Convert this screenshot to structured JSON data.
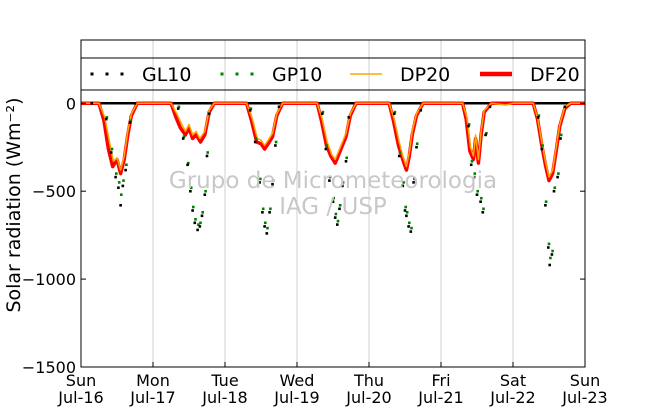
{
  "chart_data": {
    "type": "scatter",
    "ylabel": "Solar radiation (Wm⁻²)",
    "ylim": [
      -1500,
      360
    ],
    "xlim": [
      0,
      7
    ],
    "yticks": [
      0,
      -500,
      -1000,
      -1500
    ],
    "ytick_labels": [
      "0",
      "−500",
      "−1000",
      "−1500"
    ],
    "xticks": [
      0,
      1,
      2,
      3,
      4,
      5,
      6,
      7
    ],
    "xtick_labels": [
      [
        "Sun",
        "Jul-16"
      ],
      [
        "Mon",
        "Jul-17"
      ],
      [
        "Tue",
        "Jul-18"
      ],
      [
        "Wed",
        "Jul-19"
      ],
      [
        "Thu",
        "Jul-20"
      ],
      [
        "Fri",
        "Jul-21"
      ],
      [
        "Sat",
        "Jul-22"
      ],
      [
        "Sun",
        "Jul-23"
      ]
    ],
    "grid": "vertical",
    "legend_position": "top",
    "watermark": [
      "Grupo de Micrometeorologia",
      "IAG / USP"
    ],
    "x_unit": "days since Sun Jul-16",
    "series": [
      {
        "name": "GL10",
        "style": "dots",
        "color": "#000000",
        "points": [
          [
            0.15,
            0
          ],
          [
            0.35,
            -90
          ],
          [
            0.42,
            -280
          ],
          [
            0.48,
            -420
          ],
          [
            0.52,
            -480
          ],
          [
            0.55,
            -580
          ],
          [
            0.58,
            -470
          ],
          [
            0.62,
            -380
          ],
          [
            0.68,
            -110
          ],
          [
            0.75,
            0
          ],
          [
            1.35,
            -30
          ],
          [
            1.42,
            -200
          ],
          [
            1.48,
            -350
          ],
          [
            1.52,
            -500
          ],
          [
            1.55,
            -610
          ],
          [
            1.58,
            -680
          ],
          [
            1.62,
            -720
          ],
          [
            1.65,
            -700
          ],
          [
            1.68,
            -640
          ],
          [
            1.72,
            -520
          ],
          [
            1.75,
            -300
          ],
          [
            1.78,
            -60
          ],
          [
            2.35,
            -40
          ],
          [
            2.42,
            -220
          ],
          [
            2.48,
            -450
          ],
          [
            2.52,
            -620
          ],
          [
            2.55,
            -700
          ],
          [
            2.58,
            -740
          ],
          [
            2.62,
            -620
          ],
          [
            2.66,
            -460
          ],
          [
            2.7,
            -240
          ],
          [
            2.75,
            -20
          ],
          [
            3.35,
            -60
          ],
          [
            3.4,
            -260
          ],
          [
            3.45,
            -440
          ],
          [
            3.5,
            -560
          ],
          [
            3.53,
            -650
          ],
          [
            3.56,
            -690
          ],
          [
            3.59,
            -600
          ],
          [
            3.63,
            -470
          ],
          [
            3.68,
            -330
          ],
          [
            3.72,
            -80
          ],
          [
            4.35,
            -60
          ],
          [
            4.42,
            -300
          ],
          [
            4.47,
            -470
          ],
          [
            4.5,
            -610
          ],
          [
            4.52,
            -640
          ],
          [
            4.55,
            -700
          ],
          [
            4.58,
            -730
          ],
          [
            4.62,
            -450
          ],
          [
            4.66,
            -250
          ],
          [
            4.72,
            -40
          ],
          [
            5.38,
            -130
          ],
          [
            5.42,
            -350
          ],
          [
            5.46,
            -420
          ],
          [
            5.5,
            -520
          ],
          [
            5.55,
            -560
          ],
          [
            5.58,
            -620
          ],
          [
            5.62,
            -180
          ],
          [
            5.68,
            -20
          ],
          [
            6.35,
            -80
          ],
          [
            6.4,
            -260
          ],
          [
            6.45,
            -580
          ],
          [
            6.49,
            -820
          ],
          [
            6.51,
            -920
          ],
          [
            6.54,
            -860
          ],
          [
            6.57,
            -500
          ],
          [
            6.62,
            -420
          ],
          [
            6.66,
            -200
          ],
          [
            6.72,
            -20
          ]
        ]
      },
      {
        "name": "GP10",
        "style": "dots",
        "color": "#008000",
        "points": [
          [
            0.36,
            -80
          ],
          [
            0.43,
            -260
          ],
          [
            0.49,
            -400
          ],
          [
            0.53,
            -450
          ],
          [
            0.56,
            -520
          ],
          [
            0.59,
            -440
          ],
          [
            0.63,
            -350
          ],
          [
            0.69,
            -100
          ],
          [
            1.36,
            -20
          ],
          [
            1.43,
            -190
          ],
          [
            1.49,
            -340
          ],
          [
            1.53,
            -480
          ],
          [
            1.56,
            -590
          ],
          [
            1.59,
            -660
          ],
          [
            1.63,
            -690
          ],
          [
            1.66,
            -680
          ],
          [
            1.69,
            -620
          ],
          [
            1.73,
            -500
          ],
          [
            1.76,
            -280
          ],
          [
            2.36,
            -30
          ],
          [
            2.43,
            -200
          ],
          [
            2.49,
            -430
          ],
          [
            2.53,
            -600
          ],
          [
            2.56,
            -680
          ],
          [
            2.59,
            -710
          ],
          [
            2.63,
            -600
          ],
          [
            2.67,
            -440
          ],
          [
            2.71,
            -220
          ],
          [
            3.36,
            -50
          ],
          [
            3.41,
            -240
          ],
          [
            3.46,
            -420
          ],
          [
            3.51,
            -540
          ],
          [
            3.54,
            -630
          ],
          [
            3.57,
            -670
          ],
          [
            3.6,
            -580
          ],
          [
            3.64,
            -450
          ],
          [
            3.69,
            -310
          ],
          [
            4.36,
            -50
          ],
          [
            4.43,
            -280
          ],
          [
            4.48,
            -450
          ],
          [
            4.51,
            -590
          ],
          [
            4.53,
            -620
          ],
          [
            4.56,
            -680
          ],
          [
            4.59,
            -710
          ],
          [
            4.63,
            -430
          ],
          [
            4.67,
            -230
          ],
          [
            5.39,
            -120
          ],
          [
            5.43,
            -330
          ],
          [
            5.47,
            -400
          ],
          [
            5.51,
            -500
          ],
          [
            5.56,
            -540
          ],
          [
            5.59,
            -600
          ],
          [
            5.63,
            -170
          ],
          [
            6.36,
            -70
          ],
          [
            6.41,
            -240
          ],
          [
            6.46,
            -560
          ],
          [
            6.5,
            -800
          ],
          [
            6.52,
            -880
          ],
          [
            6.55,
            -840
          ],
          [
            6.58,
            -480
          ],
          [
            6.63,
            -400
          ],
          [
            6.67,
            -180
          ]
        ]
      },
      {
        "name": "DP20",
        "style": "line",
        "color": "#ffa500",
        "points": [
          [
            0.0,
            0
          ],
          [
            0.25,
            0
          ],
          [
            0.33,
            -80
          ],
          [
            0.4,
            -230
          ],
          [
            0.45,
            -330
          ],
          [
            0.5,
            -310
          ],
          [
            0.55,
            -380
          ],
          [
            0.6,
            -300
          ],
          [
            0.65,
            -160
          ],
          [
            0.7,
            -60
          ],
          [
            0.78,
            0
          ],
          [
            1.25,
            0
          ],
          [
            1.33,
            -60
          ],
          [
            1.4,
            -120
          ],
          [
            1.45,
            -160
          ],
          [
            1.5,
            -120
          ],
          [
            1.55,
            -180
          ],
          [
            1.6,
            -160
          ],
          [
            1.65,
            -200
          ],
          [
            1.72,
            -160
          ],
          [
            1.78,
            -40
          ],
          [
            1.85,
            0
          ],
          [
            2.3,
            0
          ],
          [
            2.38,
            -90
          ],
          [
            2.45,
            -200
          ],
          [
            2.5,
            -210
          ],
          [
            2.55,
            -240
          ],
          [
            2.6,
            -210
          ],
          [
            2.66,
            -170
          ],
          [
            2.72,
            -60
          ],
          [
            2.8,
            0
          ],
          [
            3.28,
            0
          ],
          [
            3.35,
            -90
          ],
          [
            3.42,
            -220
          ],
          [
            3.48,
            -290
          ],
          [
            3.53,
            -320
          ],
          [
            3.58,
            -270
          ],
          [
            3.63,
            -220
          ],
          [
            3.68,
            -170
          ],
          [
            3.74,
            -60
          ],
          [
            3.82,
            0
          ],
          [
            4.28,
            0
          ],
          [
            4.35,
            -90
          ],
          [
            4.42,
            -220
          ],
          [
            4.47,
            -300
          ],
          [
            4.52,
            -360
          ],
          [
            4.56,
            -280
          ],
          [
            4.6,
            -160
          ],
          [
            4.66,
            -60
          ],
          [
            4.75,
            0
          ],
          [
            5.3,
            0
          ],
          [
            5.36,
            -80
          ],
          [
            5.41,
            -250
          ],
          [
            5.45,
            -300
          ],
          [
            5.48,
            -180
          ],
          [
            5.52,
            -320
          ],
          [
            5.56,
            -150
          ],
          [
            5.6,
            -40
          ],
          [
            5.7,
            0
          ],
          [
            5.9,
            -10
          ],
          [
            6.0,
            0
          ],
          [
            6.28,
            0
          ],
          [
            6.34,
            -80
          ],
          [
            6.4,
            -220
          ],
          [
            6.45,
            -330
          ],
          [
            6.5,
            -420
          ],
          [
            6.55,
            -380
          ],
          [
            6.6,
            -250
          ],
          [
            6.65,
            -120
          ],
          [
            6.72,
            -20
          ],
          [
            6.8,
            0
          ],
          [
            7.0,
            0
          ]
        ]
      },
      {
        "name": "DF20",
        "style": "line",
        "color": "#ff0000",
        "points": [
          [
            0.0,
            0
          ],
          [
            0.25,
            0
          ],
          [
            0.32,
            -100
          ],
          [
            0.38,
            -260
          ],
          [
            0.44,
            -360
          ],
          [
            0.5,
            -320
          ],
          [
            0.55,
            -400
          ],
          [
            0.6,
            -320
          ],
          [
            0.65,
            -180
          ],
          [
            0.7,
            -70
          ],
          [
            0.78,
            0
          ],
          [
            1.25,
            0
          ],
          [
            1.32,
            -80
          ],
          [
            1.38,
            -140
          ],
          [
            1.45,
            -180
          ],
          [
            1.5,
            -140
          ],
          [
            1.55,
            -200
          ],
          [
            1.6,
            -180
          ],
          [
            1.66,
            -220
          ],
          [
            1.72,
            -180
          ],
          [
            1.78,
            -50
          ],
          [
            1.85,
            0
          ],
          [
            2.3,
            0
          ],
          [
            2.37,
            -100
          ],
          [
            2.44,
            -220
          ],
          [
            2.5,
            -230
          ],
          [
            2.55,
            -260
          ],
          [
            2.6,
            -230
          ],
          [
            2.66,
            -190
          ],
          [
            2.72,
            -70
          ],
          [
            2.8,
            0
          ],
          [
            3.28,
            0
          ],
          [
            3.34,
            -100
          ],
          [
            3.41,
            -240
          ],
          [
            3.47,
            -300
          ],
          [
            3.53,
            -340
          ],
          [
            3.58,
            -290
          ],
          [
            3.63,
            -240
          ],
          [
            3.68,
            -190
          ],
          [
            3.74,
            -70
          ],
          [
            3.82,
            0
          ],
          [
            4.28,
            0
          ],
          [
            4.34,
            -100
          ],
          [
            4.41,
            -240
          ],
          [
            4.47,
            -320
          ],
          [
            4.52,
            -380
          ],
          [
            4.56,
            -300
          ],
          [
            4.6,
            -180
          ],
          [
            4.66,
            -70
          ],
          [
            4.75,
            0
          ],
          [
            5.3,
            0
          ],
          [
            5.35,
            -90
          ],
          [
            5.4,
            -270
          ],
          [
            5.45,
            -320
          ],
          [
            5.48,
            -200
          ],
          [
            5.52,
            -340
          ],
          [
            5.56,
            -170
          ],
          [
            5.6,
            -50
          ],
          [
            5.7,
            0
          ],
          [
            6.28,
            0
          ],
          [
            6.34,
            -90
          ],
          [
            6.4,
            -240
          ],
          [
            6.45,
            -350
          ],
          [
            6.5,
            -440
          ],
          [
            6.55,
            -400
          ],
          [
            6.6,
            -270
          ],
          [
            6.65,
            -130
          ],
          [
            6.72,
            -30
          ],
          [
            6.8,
            0
          ],
          [
            7.0,
            0
          ]
        ]
      }
    ]
  }
}
